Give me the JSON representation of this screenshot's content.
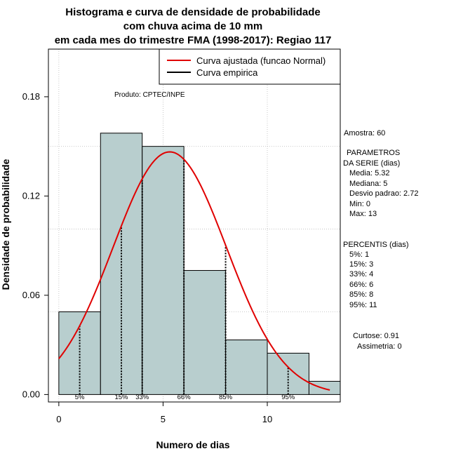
{
  "colors": {
    "bar_fill": "#b8cece",
    "bar_stroke": "#000000",
    "curve": "#e00000",
    "grid": "#bbbbbb",
    "background": "#ffffff"
  },
  "chart_data": {
    "type": "histogram",
    "title_lines": [
      "Histograma e curva de densidade de probabilidade",
      "com chuva acima de 10 mm",
      "em cada mes do trimestre FMA (1998-2017): Regiao 117"
    ],
    "xlabel": "Numero de dias",
    "ylabel": "Densidade de probabilidade",
    "xlim": [
      -0.5,
      13.5
    ],
    "ylim": [
      -0.0045,
      0.2088
    ],
    "x_ticks": [
      0,
      5,
      10
    ],
    "y_ticks": [
      0.0,
      0.06,
      0.12,
      0.18
    ],
    "y_tick_labels": [
      "0.00",
      "0.06",
      "0.12",
      "0.18"
    ],
    "grid_x": [
      0,
      5,
      10
    ],
    "grid_y": [
      0.05,
      0.1,
      0.15
    ],
    "bins": [
      {
        "from": 0,
        "to": 2,
        "density": 0.05
      },
      {
        "from": 2,
        "to": 4,
        "density": 0.158
      },
      {
        "from": 4,
        "to": 6,
        "density": 0.15
      },
      {
        "from": 6,
        "to": 8,
        "density": 0.075
      },
      {
        "from": 8,
        "to": 10,
        "density": 0.033
      },
      {
        "from": 10,
        "to": 12,
        "density": 0.025
      },
      {
        "from": 12,
        "to": 14,
        "density": 0.008
      }
    ],
    "normal_fit": {
      "mean": 5.32,
      "sd": 2.72,
      "x_from": 0,
      "x_to": 13
    },
    "percentiles": [
      {
        "label": "5%",
        "x": 1,
        "label_x": 1
      },
      {
        "label": "15%",
        "x": 3,
        "label_x": 3
      },
      {
        "label": "33%",
        "x": 4,
        "label_x": 4
      },
      {
        "label": "66%",
        "x": 6,
        "label_x": 6
      },
      {
        "label": "85%",
        "x": 8,
        "label_x": 8
      },
      {
        "label": "95%",
        "x": 11,
        "label_x": 11
      }
    ],
    "legend": {
      "position": "top-right",
      "entries": [
        {
          "label": "Curva ajustada (funcao Normal)",
          "color": "#e00000"
        },
        {
          "label": "Curva empirica",
          "color": "#000000"
        }
      ]
    },
    "product_label": "Produto: CPTEC/INPE",
    "info": {
      "sample": "Amostra: 60",
      "params_title_1": "PARAMETROS",
      "params_title_2": "DA SERIE (dias)",
      "params": [
        "Media: 5.32",
        "Mediana: 5",
        "Desvio padrao: 2.72",
        "Min: 0",
        "Max: 13"
      ],
      "percentis_title": "PERCENTIS (dias)",
      "percentis": [
        "5%: 1",
        "15%: 3",
        "33%: 4",
        "66%: 6",
        "85%: 8",
        "95%: 11"
      ],
      "curtose": "Curtose: 0.91",
      "assimetria": "Assimetria: 0"
    }
  }
}
